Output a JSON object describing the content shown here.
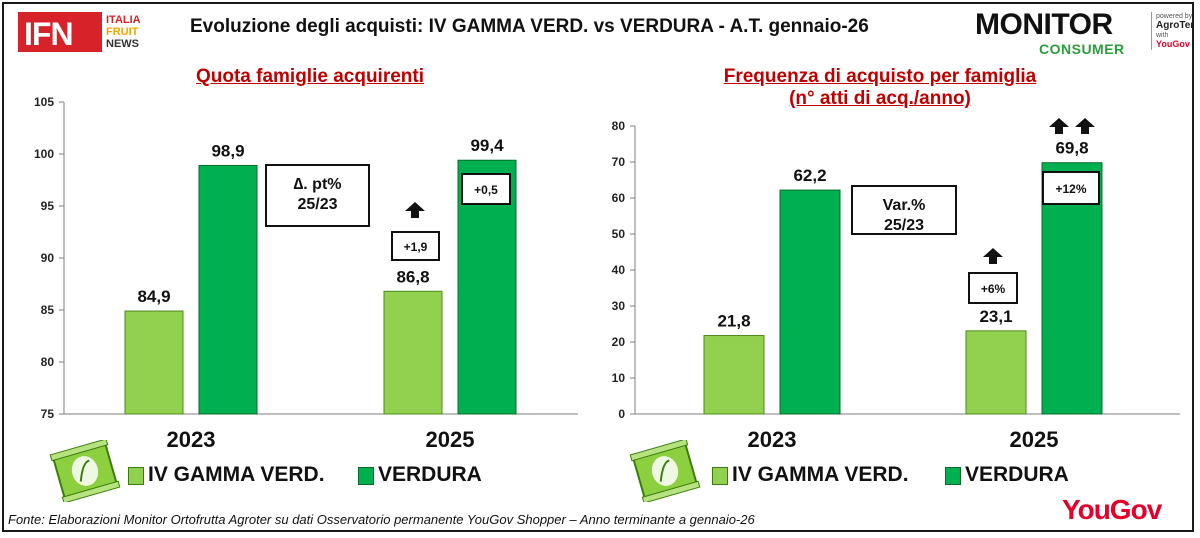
{
  "header": {
    "logo_ifn": "IFN",
    "logo_ifn_lines": [
      "ITALIA",
      "FRUIT",
      "NEWS"
    ],
    "title": "Evoluzione degli acquisti: IV GAMMA VERD. vs VERDURA  - A.T. gennaio-26",
    "logo_monitor": "MONITOR",
    "logo_consumer": "CONSUMER",
    "logo_powered": "powered by",
    "logo_agroter": "AgroTer",
    "logo_with": "with",
    "logo_yougov_small": "YouGov"
  },
  "colors": {
    "iv_gamma": "#92d050",
    "verdura": "#00b050",
    "title_red": "#c00000",
    "brand_red": "#e4002b"
  },
  "legend": {
    "series1": "IV GAMMA VERD.",
    "series2": "VERDURA"
  },
  "chart_data": [
    {
      "type": "bar",
      "title": "Quota famiglie acquirenti",
      "categories": [
        "2023",
        "2025"
      ],
      "series": [
        {
          "name": "IV GAMMA VERD.",
          "values": [
            84.9,
            98.9
          ]
        },
        {
          "name": "VERDURA",
          "values": [
            86.8,
            99.4
          ]
        }
      ],
      "data_labels": [
        [
          "84,9",
          "98,9"
        ],
        [
          "86,8",
          "99,4"
        ]
      ],
      "ylim": [
        75,
        105
      ],
      "yticks": [
        75,
        80,
        85,
        90,
        95,
        100,
        105
      ],
      "delta_box": "∆. pt%\n25/23",
      "deltas": [
        "+1,9",
        "+0,5"
      ],
      "arrows": [
        1,
        0
      ],
      "grid": false
    },
    {
      "type": "bar",
      "title": "Frequenza di acquisto per famiglia\n(n° atti di acq./anno)",
      "categories": [
        "2023",
        "2025"
      ],
      "series": [
        {
          "name": "IV GAMMA VERD.",
          "values": [
            21.8,
            62.2
          ]
        },
        {
          "name": "VERDURA",
          "values": [
            23.1,
            69.8
          ]
        }
      ],
      "data_labels": [
        [
          "21,8",
          "62,2"
        ],
        [
          "23,1",
          "69,8"
        ]
      ],
      "ylim": [
        0,
        80
      ],
      "yticks": [
        0,
        10,
        20,
        30,
        40,
        50,
        60,
        70,
        80
      ],
      "delta_box": "Var.%\n25/23",
      "deltas": [
        "+6%",
        "+12%"
      ],
      "arrows": [
        1,
        2
      ],
      "grid": false
    }
  ],
  "footer": {
    "source": "Fonte: Elaborazioni Monitor Ortofrutta Agroter su dati Osservatorio permanente YouGov Shopper  – Anno terminante a gennaio-26",
    "yougov": "YouGov"
  }
}
